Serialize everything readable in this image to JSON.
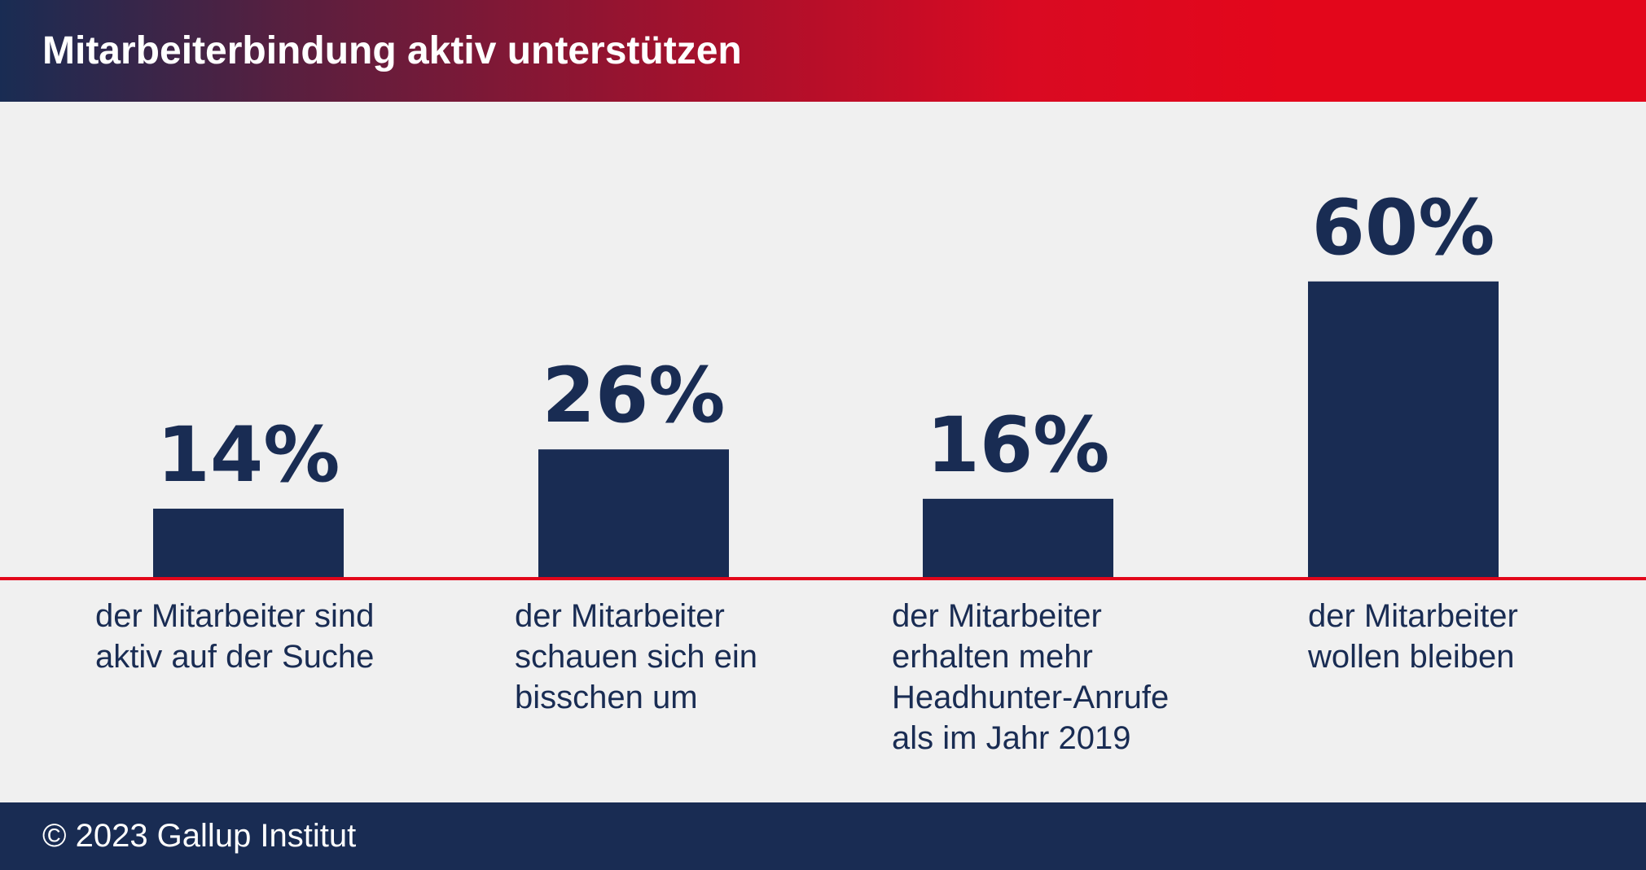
{
  "header": {
    "title": "Mitarbeiterbindung aktiv unterstützen"
  },
  "footer": {
    "copyright": "© 2023 Gallup Institut"
  },
  "colors": {
    "bar": "#192c53",
    "baseline": "#e3061b",
    "background": "#f0f0f0"
  },
  "chart_data": {
    "type": "bar",
    "title": "",
    "xlabel": "",
    "ylabel": "",
    "ylim": [
      0,
      60
    ],
    "grid": false,
    "categories": [
      "der Mitarbeiter sind aktiv auf der Suche",
      "der Mitarbeiter schauen sich ein bisschen um",
      "der Mitarbeiter erhalten mehr Headhunter-Anrufe als im Jahr 2019",
      "der Mitarbeiter wollen bleiben"
    ],
    "values": [
      14,
      26,
      16,
      60
    ],
    "value_labels": [
      "14%",
      "26%",
      "16%",
      "60%"
    ],
    "label_lines": [
      [
        "der Mitarbeiter sind",
        "aktiv auf der Suche"
      ],
      [
        "der Mitarbeiter",
        "schauen sich ein",
        "bisschen um"
      ],
      [
        "der Mitarbeiter",
        "erhalten mehr",
        "Headhunter-Anrufe",
        "als im Jahr 2019"
      ],
      [
        "der Mitarbeiter",
        "wollen bleiben"
      ]
    ]
  }
}
